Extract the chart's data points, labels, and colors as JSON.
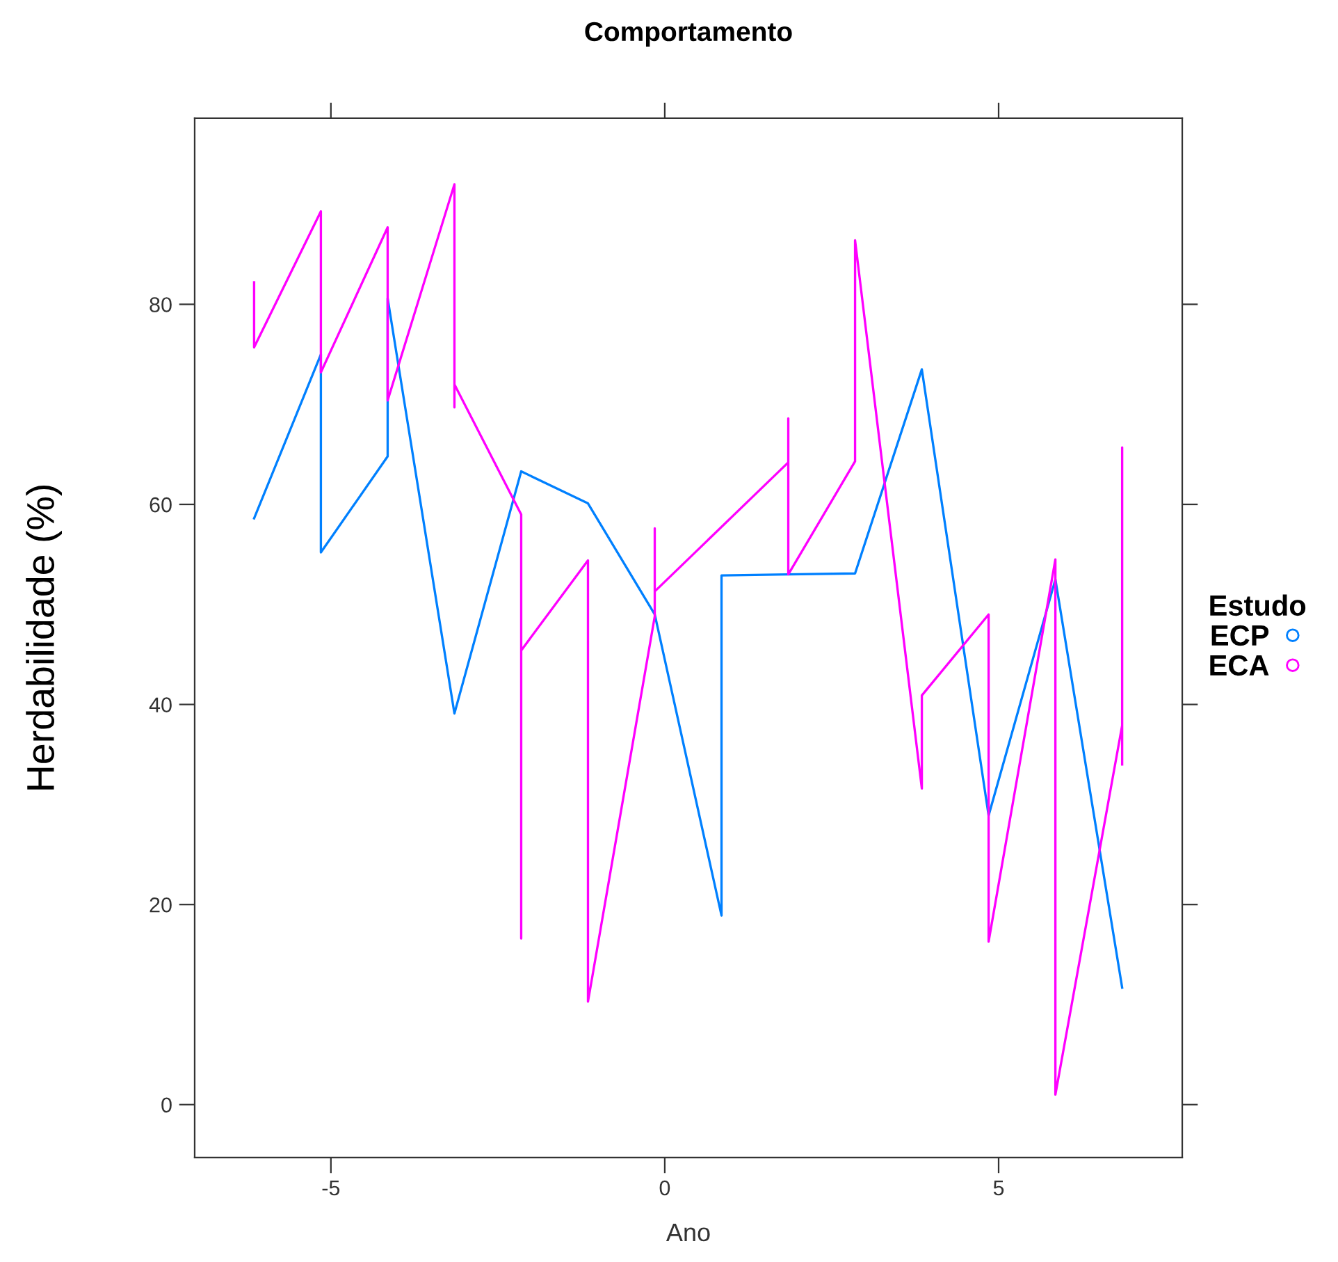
{
  "chart_data": {
    "type": "line",
    "title": "Comportamento",
    "xlabel": "Ano",
    "ylabel": "Herdabilidade (%)",
    "legend_title": "Estudo",
    "legend": "right",
    "xlim": [
      -7.04,
      7.75
    ],
    "ylim": [
      -5.3,
      98.6
    ],
    "xticks": [
      -5,
      0,
      5
    ],
    "yticks": [
      0,
      20,
      40,
      60,
      80
    ],
    "grid": false,
    "series": [
      {
        "name": "ECP",
        "color": "#0080ff",
        "x": [
          -6.15,
          -5.15,
          -5.15,
          -4.15,
          -4.15,
          -3.15,
          -2.15,
          -1.15,
          -0.15,
          0.85,
          0.85,
          1.85,
          2.85,
          3.85,
          4.85,
          5.85,
          6.85
        ],
        "values": [
          58.6,
          75.0,
          55.2,
          64.8,
          80.6,
          39.1,
          63.3,
          60.1,
          49.0,
          18.9,
          52.9,
          53.0,
          53.1,
          73.5,
          28.9,
          52.5,
          11.7
        ]
      },
      {
        "name": "ECA",
        "color": "#ff00ff",
        "x": [
          -6.15,
          -6.15,
          -5.15,
          -5.15,
          -4.15,
          -4.15,
          -3.15,
          -3.15,
          -3.15,
          -2.15,
          -2.15,
          -2.15,
          -1.15,
          -1.15,
          -0.15,
          -0.15,
          -0.15,
          1.85,
          1.85,
          1.85,
          2.85,
          2.85,
          3.85,
          3.85,
          4.85,
          4.85,
          5.85,
          5.85,
          6.85,
          6.85,
          6.85
        ],
        "values": [
          82.2,
          75.7,
          89.3,
          73.2,
          87.7,
          70.4,
          92.0,
          69.7,
          72.0,
          59.0,
          16.6,
          45.4,
          54.4,
          10.3,
          48.8,
          57.6,
          51.3,
          64.2,
          68.6,
          53.0,
          64.3,
          86.4,
          31.6,
          40.9,
          49.0,
          16.3,
          54.5,
          1.0,
          37.9,
          65.7,
          34.0
        ]
      }
    ]
  }
}
